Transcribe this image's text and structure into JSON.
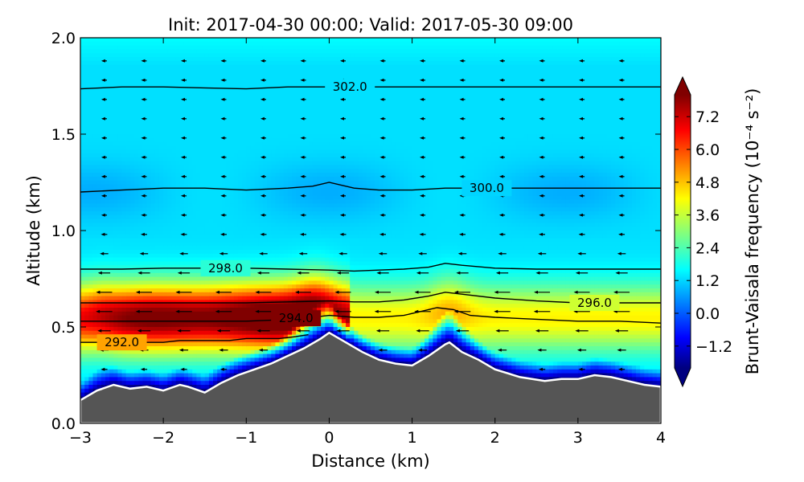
{
  "chart_data": {
    "type": "heatmap",
    "title": "Init: 2017-04-30 00:00; Valid: 2017-05-30 09:00",
    "xlabel": "Distance (km)",
    "ylabel": "Altitude (km)",
    "xlim": [
      -3,
      4
    ],
    "ylim": [
      0.0,
      2.0
    ],
    "xticks": [
      -3,
      -2,
      -1,
      0,
      1,
      2,
      3,
      4
    ],
    "xtick_labels": [
      "−3",
      "−2",
      "−1",
      "0",
      "1",
      "2",
      "3",
      "4"
    ],
    "yticks": [
      0.0,
      0.5,
      1.0,
      1.5,
      2.0
    ],
    "ytick_labels": [
      "0.0",
      "0.5",
      "1.0",
      "1.5",
      "2.0"
    ],
    "grid": false,
    "colorbar": {
      "label": "Brunt-Vaisala frequency (10⁻⁴ s⁻²)",
      "range": [
        -2.0,
        8.0
      ],
      "ticks": [
        -1.2,
        0.0,
        1.2,
        2.4,
        3.6,
        4.8,
        6.0,
        7.2
      ],
      "tick_labels": [
        "−1.2",
        "0.0",
        "1.2",
        "2.4",
        "3.6",
        "4.8",
        "6.0",
        "7.2"
      ],
      "colormap": "jet",
      "extend": "both"
    },
    "colormap_stops": [
      "#000080",
      "#0000ff",
      "#00ffff",
      "#ffff00",
      "#ff0000",
      "#800000"
    ],
    "terrain_color": "#555555",
    "terrain": {
      "x": [
        -3.0,
        -2.8,
        -2.6,
        -2.4,
        -2.2,
        -2.0,
        -1.8,
        -1.7,
        -1.5,
        -1.3,
        -1.1,
        -0.9,
        -0.7,
        -0.5,
        -0.3,
        -0.1,
        0.0,
        0.2,
        0.4,
        0.6,
        0.8,
        1.0,
        1.2,
        1.4,
        1.45,
        1.6,
        1.8,
        2.0,
        2.3,
        2.6,
        2.8,
        3.0,
        3.2,
        3.4,
        3.6,
        3.8,
        4.0
      ],
      "y": [
        0.12,
        0.17,
        0.2,
        0.18,
        0.19,
        0.17,
        0.2,
        0.19,
        0.16,
        0.21,
        0.25,
        0.28,
        0.31,
        0.35,
        0.39,
        0.44,
        0.47,
        0.42,
        0.37,
        0.33,
        0.31,
        0.3,
        0.35,
        0.41,
        0.42,
        0.37,
        0.33,
        0.28,
        0.24,
        0.22,
        0.23,
        0.23,
        0.25,
        0.24,
        0.22,
        0.2,
        0.19
      ]
    },
    "series": [
      {
        "value": 292.0,
        "label": "292.0",
        "label_pos": [
          -2.5,
          0.42
        ],
        "x": [
          -3.0,
          -2.7,
          -2.5,
          -2.2,
          -2.0,
          -1.8,
          -1.5,
          -1.2,
          -1.0,
          -0.8,
          -0.6,
          -0.4,
          -0.25
        ],
        "y": [
          0.42,
          0.42,
          0.42,
          0.42,
          0.42,
          0.43,
          0.43,
          0.43,
          0.44,
          0.44,
          0.44,
          0.45,
          0.46
        ]
      },
      {
        "value": 294.0,
        "label": "294.0",
        "label_pos": [
          -0.4,
          0.545
        ],
        "x": [
          -3.0,
          -2.5,
          -2.0,
          -1.5,
          -1.0,
          -0.7,
          -0.5,
          -0.2,
          0.0,
          0.3,
          0.6,
          0.9,
          1.1,
          1.3,
          1.5,
          1.7,
          2.0,
          2.5,
          3.0,
          3.5,
          4.0
        ],
        "y": [
          0.53,
          0.53,
          0.53,
          0.53,
          0.53,
          0.535,
          0.54,
          0.55,
          0.56,
          0.55,
          0.55,
          0.56,
          0.58,
          0.6,
          0.59,
          0.56,
          0.55,
          0.54,
          0.53,
          0.53,
          0.52
        ]
      },
      {
        "value": 296.0,
        "label": "296.0",
        "label_pos": [
          3.2,
          0.625
        ],
        "x": [
          -3.0,
          -2.5,
          -2.0,
          -1.5,
          -1.0,
          -0.5,
          0.0,
          0.3,
          0.6,
          0.9,
          1.2,
          1.4,
          1.6,
          2.0,
          2.5,
          3.0,
          3.5,
          4.0
        ],
        "y": [
          0.625,
          0.625,
          0.625,
          0.625,
          0.625,
          0.63,
          0.635,
          0.63,
          0.63,
          0.64,
          0.66,
          0.68,
          0.67,
          0.65,
          0.635,
          0.625,
          0.625,
          0.625
        ]
      },
      {
        "value": 298.0,
        "label": "298.0",
        "label_pos": [
          -1.25,
          0.805
        ],
        "x": [
          -3.0,
          -2.5,
          -2.0,
          -1.5,
          -1.0,
          -0.5,
          0.0,
          0.3,
          0.6,
          0.9,
          1.2,
          1.4,
          1.6,
          2.0,
          2.5,
          3.0,
          3.5,
          4.0
        ],
        "y": [
          0.8,
          0.8,
          0.805,
          0.805,
          0.805,
          0.8,
          0.795,
          0.79,
          0.795,
          0.8,
          0.81,
          0.83,
          0.82,
          0.805,
          0.8,
          0.8,
          0.8,
          0.8
        ]
      },
      {
        "value": 300.0,
        "label": "300.0",
        "label_pos": [
          1.9,
          1.22
        ],
        "x": [
          -3.0,
          -2.5,
          -2.0,
          -1.5,
          -1.0,
          -0.5,
          -0.2,
          0.0,
          0.3,
          0.6,
          1.0,
          1.4,
          1.8,
          2.2,
          2.6,
          3.0,
          3.5,
          4.0
        ],
        "y": [
          1.2,
          1.21,
          1.22,
          1.22,
          1.21,
          1.22,
          1.23,
          1.25,
          1.22,
          1.21,
          1.21,
          1.22,
          1.22,
          1.22,
          1.22,
          1.22,
          1.22,
          1.22
        ]
      },
      {
        "value": 302.0,
        "label": "302.0",
        "label_pos": [
          0.25,
          1.745
        ],
        "x": [
          -3.0,
          -2.5,
          -2.0,
          -1.5,
          -1.0,
          -0.5,
          0.0,
          0.5,
          1.0,
          1.5,
          2.0,
          2.5,
          3.0,
          3.5,
          4.0
        ],
        "y": [
          1.735,
          1.745,
          1.745,
          1.74,
          1.735,
          1.745,
          1.745,
          1.745,
          1.745,
          1.745,
          1.745,
          1.745,
          1.745,
          1.745,
          1.745
        ]
      }
    ]
  }
}
